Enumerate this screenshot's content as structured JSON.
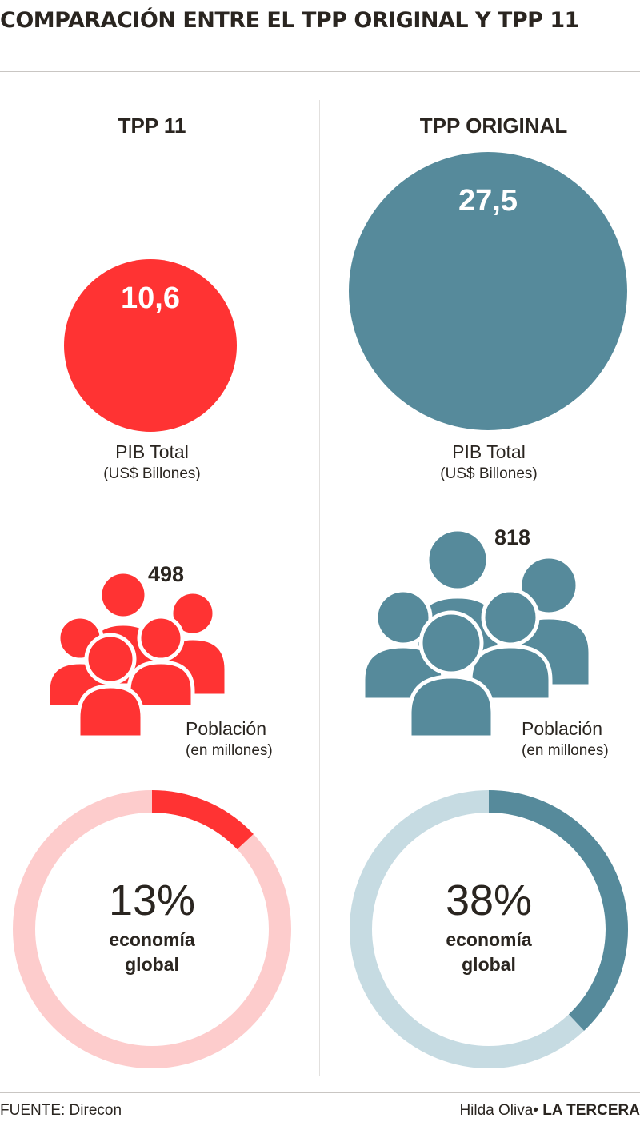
{
  "title": "COMPARACIÓN ENTRE EL TPP ORIGINAL Y TPP 11",
  "colors": {
    "tpp11": "#ff3333",
    "tpp11_light": "#fdcccc",
    "original": "#568a9b",
    "original_light": "#c6dbe2"
  },
  "columns": [
    {
      "heading": "TPP 11",
      "pib": {
        "value": "10,6",
        "label": "PIB Total",
        "unit": "(US$ Billones)"
      },
      "poblacion": {
        "value": "498",
        "label": "Población",
        "unit": "(en millones)"
      },
      "economia": {
        "percent_text": "13%",
        "label_line1": "economía",
        "label_line2": "global"
      }
    },
    {
      "heading": "TPP ORIGINAL",
      "pib": {
        "value": "27,5",
        "label": "PIB Total",
        "unit": "(US$ Billones)"
      },
      "poblacion": {
        "value": "818",
        "label": "Población",
        "unit": "(en millones)"
      },
      "economia": {
        "percent_text": "38%",
        "label_line1": "economía",
        "label_line2": "global"
      }
    }
  ],
  "footer": {
    "source": "FUENTE: Direcon",
    "author": "Hilda Oliva•",
    "brand": "LA TERCERA"
  },
  "chart_data": [
    {
      "type": "bubble",
      "title": "PIB Total",
      "unit": "(US$ Billones)",
      "categories": [
        "TPP 11",
        "TPP ORIGINAL"
      ],
      "values": [
        10.6,
        27.5
      ]
    },
    {
      "type": "pictogram",
      "title": "Población",
      "unit": "(en millones)",
      "categories": [
        "TPP 11",
        "TPP ORIGINAL"
      ],
      "values": [
        498,
        818
      ]
    },
    {
      "type": "pie",
      "title": "economía global",
      "categories": [
        "TPP 11",
        "TPP ORIGINAL"
      ],
      "values": [
        13,
        38
      ]
    }
  ]
}
